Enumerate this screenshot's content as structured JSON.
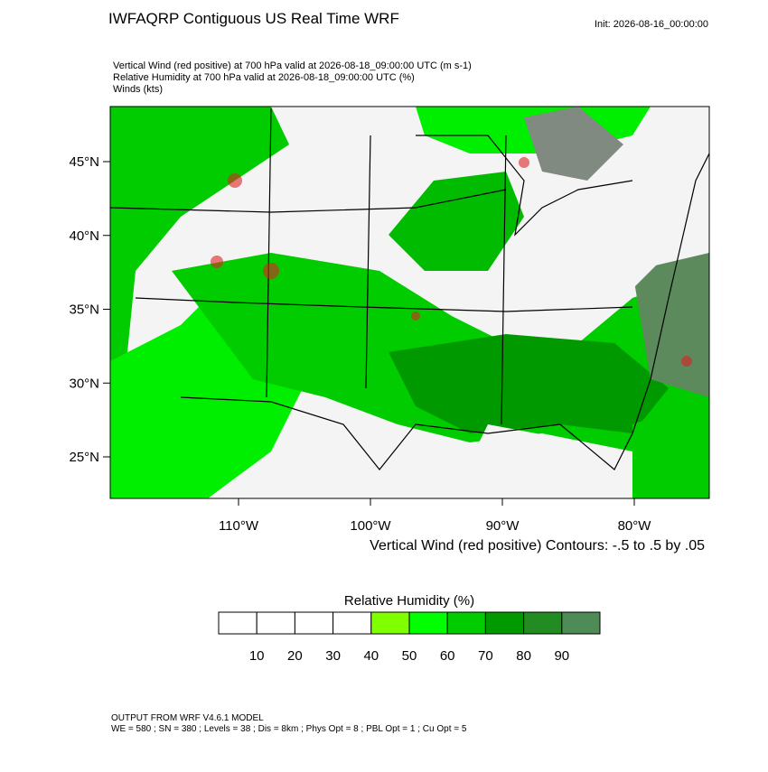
{
  "header": {
    "title": "IWFAQRP Contiguous US Real Time WRF",
    "init": "Init: 2026-08-16_00:00:00",
    "lines": [
      "Vertical Wind (red positive) at 700 hPa valid at 2026-08-18_09:00:00 UTC   (m s-1)",
      "Relative Humidity at 700 hPa valid at 2026-08-18_09:00:00 UTC   (%)",
      "Winds   (kts)"
    ]
  },
  "map": {
    "lat_ticks": [
      {
        "value": 45,
        "label": "45°N"
      },
      {
        "value": 40,
        "label": "40°N"
      },
      {
        "value": 35,
        "label": "35°N"
      },
      {
        "value": 30,
        "label": "30°N"
      },
      {
        "value": 25,
        "label": "25°N"
      }
    ],
    "lon_ticks": [
      {
        "value": -110,
        "label": "110°W"
      },
      {
        "value": -100,
        "label": "100°W"
      },
      {
        "value": -90,
        "label": "90°W"
      },
      {
        "value": -80,
        "label": "80°W"
      }
    ],
    "contour_note": "Vertical Wind (red positive) Contours: -.5 to .5 by .05"
  },
  "colorbar": {
    "title": "Relative Humidity  (%)",
    "levels": [
      10,
      20,
      30,
      40,
      50,
      60,
      70,
      80,
      90
    ],
    "colors": [
      "#ffffff",
      "#ffffff",
      "#ffffff",
      "#ffffff",
      "#80ff00",
      "#00ff00",
      "#00cc00",
      "#009900",
      "#228b22",
      "#4f8b57"
    ]
  },
  "footer": {
    "lines": [
      "OUTPUT FROM WRF V4.6.1 MODEL",
      "WE = 580 ; SN = 380 ; Levels = 38 ; Dis = 8km ; Phys Opt = 8 ; PBL Opt = 1 ; Cu Opt = 5"
    ]
  }
}
